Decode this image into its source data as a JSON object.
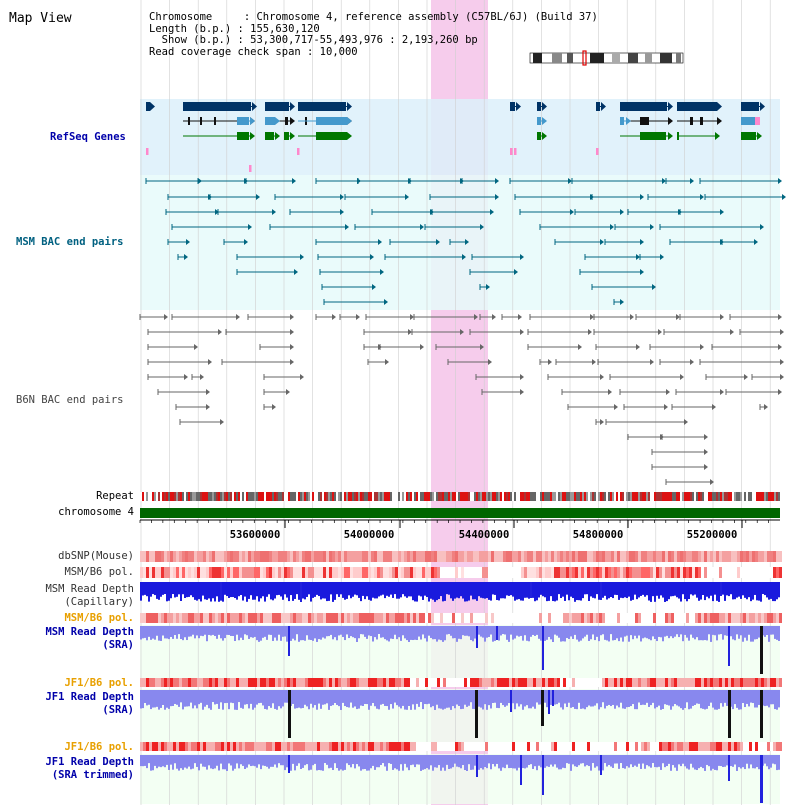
{
  "title": "Map View",
  "info": {
    "line1": "Chromosome     : Chromosome 4, reference assembly (C57BL/6J) (Build 37)",
    "line2": "Length (b.p.) : 155,630,120",
    "line3": "  Show (b.p.) : 53,300,717-55,493,976 : 2,193,260 bp",
    "line4": "Read coverage check span : 10,000"
  },
  "tracks": {
    "refseq": "RefSeq Genes",
    "msm_bac": "MSM BAC end pairs",
    "b6n_bac": "B6N BAC end pairs",
    "repeat": "Repeat",
    "chromosome": "chromosome 4",
    "dbsnp": "dbSNP(Mouse)",
    "msm_b6_pol": "MSM/B6 pol.",
    "msm_depth_cap_1": "MSM Read Depth",
    "msm_depth_cap_2": "(Capillary)",
    "msm_b6_pol_2": "MSM/B6 pol.",
    "msm_depth_sra_1": "MSM Read Depth",
    "msm_depth_sra_2": "(SRA)",
    "jf1_b6_pol": "JF1/B6 pol.",
    "jf1_depth_sra_1": "JF1 Read Depth",
    "jf1_depth_sra_2": "(SRA)",
    "jf1_b6_pol_2": "JF1/B6 pol.",
    "jf1_depth_trim_1": "JF1 Read Depth",
    "jf1_depth_trim_2": "(SRA trimmed)"
  },
  "axis_ticks": [
    "53600000",
    "54000000",
    "54400000",
    "54800000",
    "55200000"
  ],
  "colors": {
    "title_blue": "#0000aa",
    "teal_label": "#006080",
    "gray_label": "#444444",
    "orange_label": "#e8a000",
    "highlight": "#f6ccec",
    "refseq_bg": "#dcf0fa",
    "bac_bg": "#e6fafa",
    "depth_bg": "#f0fff0",
    "chrom_green": "#006600",
    "gene_navy": "#003366",
    "gene_blue": "#4499cc",
    "gene_green": "#007700",
    "bac_teal": "#006680",
    "bac_gray": "#666666",
    "depth_blue": "#2222dd",
    "depth_lightblue": "#8888ee"
  }
}
